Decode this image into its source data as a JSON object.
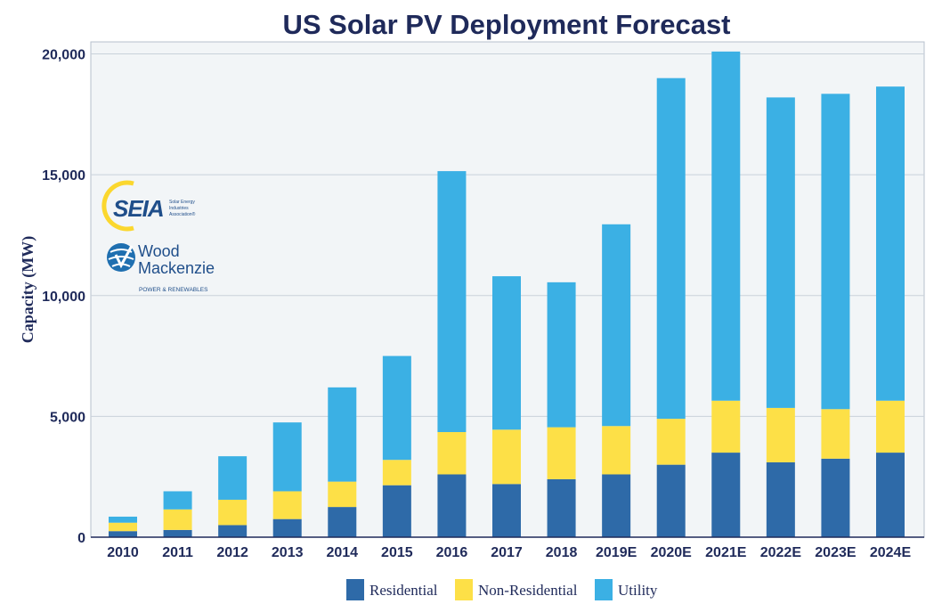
{
  "chart_data": {
    "type": "bar",
    "stacked": true,
    "title": "US Solar PV Deployment Forecast",
    "xlabel": "",
    "ylabel": "Capacity (MW)",
    "ylim": [
      0,
      20500
    ],
    "yticks": [
      0,
      5000,
      10000,
      15000,
      20000
    ],
    "ytick_labels": [
      "0",
      "5,000",
      "10,000",
      "15,000",
      "20,000"
    ],
    "grid": true,
    "legend_position": "bottom-center",
    "categories": [
      "2010",
      "2011",
      "2012",
      "2013",
      "2014",
      "2015",
      "2016",
      "2017",
      "2018",
      "2019E",
      "2020E",
      "2021E",
      "2022E",
      "2023E",
      "2024E"
    ],
    "series": [
      {
        "name": "Residential",
        "color": "#2e6aa8",
        "values": [
          250,
          300,
          500,
          750,
          1250,
          2150,
          2600,
          2200,
          2400,
          2600,
          3000,
          3500,
          3100,
          3250,
          3500
        ]
      },
      {
        "name": "Non-Residential",
        "color": "#fde047",
        "values": [
          350,
          850,
          1050,
          1150,
          1050,
          1050,
          1750,
          2250,
          2150,
          2000,
          1900,
          2150,
          2250,
          2050,
          2150
        ]
      },
      {
        "name": "Utility",
        "color": "#3bb0e4",
        "values": [
          250,
          750,
          1800,
          2850,
          3900,
          4300,
          10800,
          6350,
          6000,
          8350,
          14100,
          14450,
          12850,
          13050,
          13000
        ]
      }
    ]
  },
  "logos": {
    "seia": {
      "mark": "SEIA",
      "line1": "Solar Energy",
      "line2": "Industries",
      "line3": "Association®"
    },
    "wood_mackenzie": {
      "line1": "Wood",
      "line2": "Mackenzie",
      "line3": "POWER & RENEWABLES"
    }
  }
}
